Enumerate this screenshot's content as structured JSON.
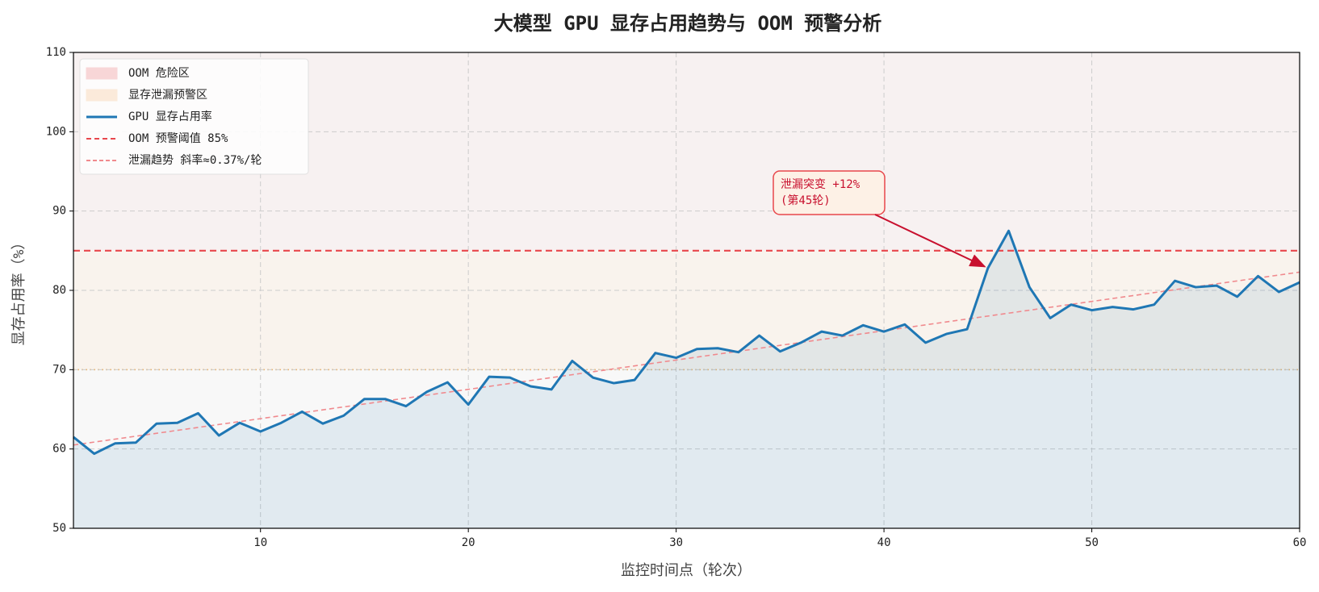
{
  "chart_data": {
    "type": "line",
    "title": "大模型 GPU 显存占用趋势与 OOM 预警分析",
    "xlabel": "监控时间点（轮次）",
    "ylabel": "显存占用率（%）",
    "x": [
      1,
      2,
      3,
      4,
      5,
      6,
      7,
      8,
      9,
      10,
      11,
      12,
      13,
      14,
      15,
      16,
      17,
      18,
      19,
      20,
      21,
      22,
      23,
      24,
      25,
      26,
      27,
      28,
      29,
      30,
      31,
      32,
      33,
      34,
      35,
      36,
      37,
      38,
      39,
      40,
      41,
      42,
      43,
      44,
      45,
      46,
      47,
      48,
      49,
      50,
      51,
      52,
      53,
      54,
      55,
      56,
      57,
      58,
      59,
      60
    ],
    "series": [
      {
        "name": "GPU 显存占用率",
        "color": "#1f77b4",
        "values": [
          61.5,
          59.4,
          60.7,
          60.8,
          63.2,
          63.3,
          64.5,
          61.7,
          63.3,
          62.2,
          63.3,
          64.7,
          63.2,
          64.2,
          66.3,
          66.3,
          65.4,
          67.2,
          68.4,
          65.6,
          69.1,
          69.0,
          67.9,
          67.5,
          71.1,
          69.0,
          68.3,
          68.7,
          72.1,
          71.5,
          72.6,
          72.7,
          72.2,
          74.3,
          72.3,
          73.4,
          74.8,
          74.3,
          75.6,
          74.8,
          75.7,
          73.4,
          74.5,
          75.1,
          82.8,
          87.5,
          80.4,
          76.5,
          78.2,
          77.5,
          77.9,
          77.6,
          78.2,
          81.2,
          80.4,
          80.6,
          79.2,
          81.8,
          79.8,
          81.0
        ]
      }
    ],
    "threshold": {
      "name": "OOM 预警阈值 85%",
      "value": 85,
      "color": "#e8474c"
    },
    "trend": {
      "name": "泄漏趋势 斜率≈0.37%/轮",
      "color": "#f08a8e",
      "x": [
        1,
        60
      ],
      "values": [
        60.5,
        82.3
      ]
    },
    "bands": [
      {
        "name": "OOM 危险区",
        "range": [
          85,
          110
        ],
        "color": "#f7c6c8"
      },
      {
        "name": "显存泄漏预警区",
        "range": [
          70,
          85
        ],
        "color": "#fbe3cc"
      }
    ],
    "annotation": {
      "text": [
        "泄漏突变 +12%",
        "(第45轮)"
      ],
      "x": 45
    },
    "xlim": [
      1,
      60
    ],
    "ylim": [
      50,
      110
    ],
    "xticks": [
      10,
      20,
      30,
      40,
      50,
      60
    ],
    "yticks": [
      50,
      60,
      70,
      80,
      90,
      100,
      110
    ],
    "grid": true,
    "legend": "upper left"
  }
}
